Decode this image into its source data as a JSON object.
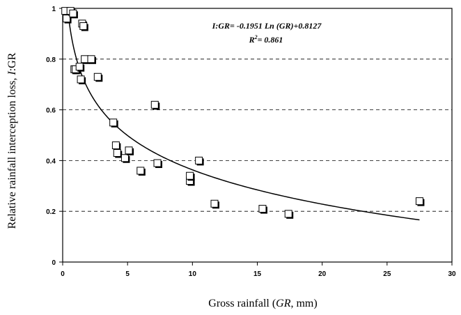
{
  "chart_data": {
    "type": "scatter",
    "xlabel_parts": [
      "Gross rainfall (",
      "GR",
      ", mm)"
    ],
    "ylabel_parts": [
      "Relative rainfall interception loss, ",
      "I",
      ":GR"
    ],
    "xlim": [
      0,
      30
    ],
    "ylim": [
      0,
      1
    ],
    "x_ticks": [
      0,
      5,
      10,
      15,
      20,
      25,
      30
    ],
    "y_ticks": [
      0,
      0.2,
      0.4,
      0.6,
      0.8,
      1
    ],
    "x_tick_labels": [
      "0",
      "5",
      "10",
      "15",
      "20",
      "25",
      "30"
    ],
    "y_tick_labels": [
      "0",
      "0.2",
      "0.4",
      "0.6",
      "0.8",
      "1"
    ],
    "grid": "horizontal-dashed",
    "marker": "square",
    "annotation": {
      "equation": "I:GR= -0.1951 Ln (GR)+0.8127",
      "r2_label": "R",
      "r2_sup": "2",
      "r2_value": "= 0.861"
    },
    "fit": {
      "model": "log",
      "a": -0.1951,
      "b": 0.8127,
      "x_range": [
        0.35,
        27.5
      ]
    },
    "x": [
      0.2,
      0.3,
      0.6,
      0.8,
      0.9,
      1.0,
      1.3,
      1.4,
      1.5,
      1.6,
      1.7,
      2.2,
      2.7,
      3.9,
      4.1,
      4.2,
      4.8,
      5.1,
      6.0,
      7.1,
      7.3,
      9.8,
      9.8,
      10.5,
      11.7,
      15.4,
      17.4,
      27.5
    ],
    "y": [
      0.99,
      0.96,
      0.99,
      0.98,
      0.76,
      0.76,
      0.77,
      0.72,
      0.94,
      0.93,
      0.8,
      0.8,
      0.73,
      0.55,
      0.46,
      0.43,
      0.41,
      0.44,
      0.36,
      0.62,
      0.39,
      0.32,
      0.34,
      0.4,
      0.23,
      0.21,
      0.19,
      0.24
    ]
  }
}
